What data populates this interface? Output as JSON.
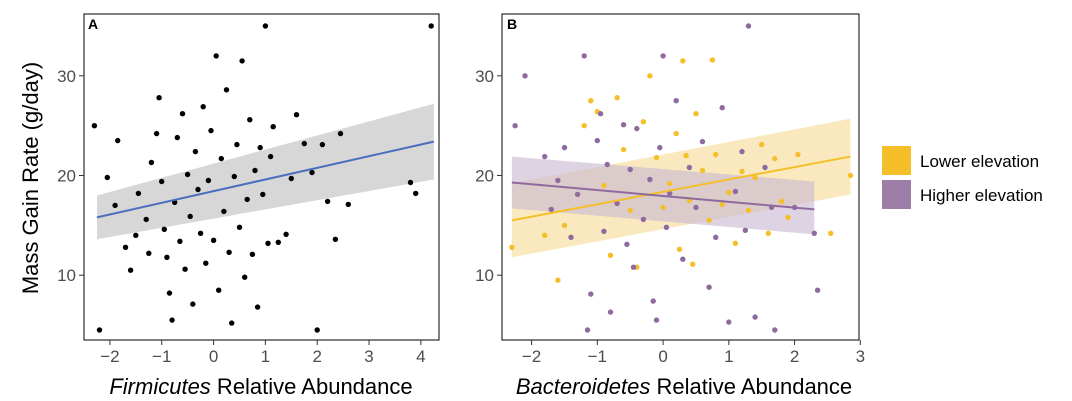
{
  "figure": {
    "ylabel": "Mass Gain Rate (g/day)"
  },
  "chart_data": [
    {
      "type": "scatter",
      "panel": "A",
      "xlabel_italic": "Firmicutes",
      "xlabel_rest": " Relative Abundance",
      "ylabel": "Mass Gain Rate (g/day)",
      "xlim": [
        -2.5,
        4.35
      ],
      "ylim": [
        3.5,
        36.2
      ],
      "xticks": [
        -2,
        -1,
        0,
        1,
        2,
        3,
        4
      ],
      "yticks": [
        10,
        20,
        30
      ],
      "grid": false,
      "point_color": "#000000",
      "line_color": "#4a6ebe",
      "ribbon_color": "#bfbfbf",
      "series": [
        {
          "points": [
            [
              -2.2,
              4.5
            ],
            [
              -2.3,
              25
            ],
            [
              -2.05,
              19.8
            ],
            [
              -1.9,
              17
            ],
            [
              -1.85,
              23.5
            ],
            [
              -1.7,
              12.8
            ],
            [
              -1.6,
              10.5
            ],
            [
              -1.5,
              14
            ],
            [
              -1.45,
              18.2
            ],
            [
              -1.3,
              15.6
            ],
            [
              -1.25,
              12.2
            ],
            [
              -1.2,
              21.3
            ],
            [
              -1.1,
              24.2
            ],
            [
              -1.05,
              27.8
            ],
            [
              -1.0,
              19.4
            ],
            [
              -0.95,
              14.6
            ],
            [
              -0.9,
              11.8
            ],
            [
              -0.85,
              8.2
            ],
            [
              -0.8,
              5.5
            ],
            [
              -0.75,
              17.3
            ],
            [
              -0.7,
              23.8
            ],
            [
              -0.65,
              13.4
            ],
            [
              -0.6,
              26.2
            ],
            [
              -0.55,
              10.6
            ],
            [
              -0.5,
              20.1
            ],
            [
              -0.45,
              15.9
            ],
            [
              -0.4,
              7.1
            ],
            [
              -0.35,
              22.4
            ],
            [
              -0.3,
              18.6
            ],
            [
              -0.25,
              14.2
            ],
            [
              -0.2,
              26.9
            ],
            [
              -0.15,
              11.2
            ],
            [
              -0.1,
              19.5
            ],
            [
              -0.05,
              24.5
            ],
            [
              0.0,
              13.5
            ],
            [
              0.05,
              32
            ],
            [
              0.1,
              8.5
            ],
            [
              0.15,
              21.7
            ],
            [
              0.2,
              16.4
            ],
            [
              0.25,
              28.6
            ],
            [
              0.3,
              12.3
            ],
            [
              0.35,
              5.2
            ],
            [
              0.4,
              19.9
            ],
            [
              0.45,
              23.1
            ],
            [
              0.5,
              14.8
            ],
            [
              0.55,
              31.5
            ],
            [
              0.6,
              9.8
            ],
            [
              0.65,
              17.6
            ],
            [
              0.7,
              25.6
            ],
            [
              0.75,
              12.1
            ],
            [
              0.8,
              20.5
            ],
            [
              0.85,
              6.8
            ],
            [
              0.9,
              22.8
            ],
            [
              0.95,
              18.1
            ],
            [
              1.0,
              35
            ],
            [
              1.05,
              13.2
            ],
            [
              1.1,
              21.9
            ],
            [
              1.15,
              24.9
            ],
            [
              1.25,
              13.3
            ],
            [
              1.4,
              14.1
            ],
            [
              1.5,
              19.7
            ],
            [
              1.6,
              26.1
            ],
            [
              1.75,
              23.2
            ],
            [
              1.9,
              20.3
            ],
            [
              2.0,
              4.5
            ],
            [
              2.1,
              23.1
            ],
            [
              2.2,
              17.4
            ],
            [
              2.35,
              13.6
            ],
            [
              2.45,
              24.2
            ],
            [
              2.6,
              17.1
            ],
            [
              3.8,
              19.3
            ],
            [
              3.9,
              18.2
            ],
            [
              4.2,
              35
            ]
          ],
          "fit_x": [
            -2.25,
            4.25
          ],
          "fit_y": [
            15.8,
            23.4
          ],
          "ci_lower": [
            13.6,
            19.6
          ],
          "ci_upper": [
            18.0,
            27.2
          ]
        }
      ]
    },
    {
      "type": "scatter",
      "panel": "B",
      "xlabel_italic": "Bacteroidetes",
      "xlabel_rest": " Relative Abundance",
      "ylabel": "",
      "xlim": [
        -2.45,
        2.98
      ],
      "ylim": [
        3.5,
        36.2
      ],
      "xticks": [
        -2,
        -1,
        0,
        1,
        2,
        3
      ],
      "yticks": [
        10,
        20,
        30
      ],
      "grid": false,
      "series": [
        {
          "name": "Lower elevation",
          "color": "#f5bf2a",
          "ribbon_color": "#f7dc96",
          "points": [
            [
              -2.3,
              12.8
            ],
            [
              -1.8,
              14
            ],
            [
              -1.6,
              9.5
            ],
            [
              -1.5,
              15
            ],
            [
              -1.2,
              25
            ],
            [
              -1.1,
              27.5
            ],
            [
              -1.0,
              26.4
            ],
            [
              -0.9,
              19
            ],
            [
              -0.8,
              12
            ],
            [
              -0.7,
              27.8
            ],
            [
              -0.6,
              22.6
            ],
            [
              -0.5,
              16.5
            ],
            [
              -0.4,
              10.8
            ],
            [
              -0.3,
              25.4
            ],
            [
              -0.2,
              30
            ],
            [
              -0.1,
              21.8
            ],
            [
              0.0,
              16.8
            ],
            [
              0.1,
              19.2
            ],
            [
              0.2,
              24.2
            ],
            [
              0.25,
              12.6
            ],
            [
              0.3,
              31.5
            ],
            [
              0.35,
              22
            ],
            [
              0.4,
              17.5
            ],
            [
              0.45,
              11.1
            ],
            [
              0.5,
              26.2
            ],
            [
              0.6,
              20.5
            ],
            [
              0.7,
              15.5
            ],
            [
              0.75,
              31.6
            ],
            [
              0.8,
              22.1
            ],
            [
              0.9,
              17.1
            ],
            [
              1.0,
              18.3
            ],
            [
              1.1,
              13.2
            ],
            [
              1.2,
              20.4
            ],
            [
              1.3,
              16.5
            ],
            [
              1.4,
              19.8
            ],
            [
              1.5,
              23.1
            ],
            [
              1.6,
              14.2
            ],
            [
              1.7,
              21.7
            ],
            [
              1.8,
              17.4
            ],
            [
              1.9,
              15.8
            ],
            [
              2.05,
              22.1
            ],
            [
              2.55,
              14.2
            ],
            [
              2.85,
              20
            ]
          ],
          "fit_x": [
            -2.3,
            2.85
          ],
          "fit_y": [
            15.5,
            21.9
          ],
          "ci_lower": [
            11.8,
            18.1
          ],
          "ci_upper": [
            19.2,
            25.7
          ]
        },
        {
          "name": "Higher elevation",
          "color": "#8f6a9f",
          "ribbon_color": "#c8b8d2",
          "points": [
            [
              -2.25,
              25
            ],
            [
              -2.1,
              30
            ],
            [
              -1.8,
              21.9
            ],
            [
              -1.7,
              16.6
            ],
            [
              -1.6,
              19.5
            ],
            [
              -1.5,
              22.8
            ],
            [
              -1.4,
              13.8
            ],
            [
              -1.3,
              18.1
            ],
            [
              -1.2,
              32
            ],
            [
              -1.15,
              4.5
            ],
            [
              -1.1,
              8.1
            ],
            [
              -1.0,
              23.5
            ],
            [
              -0.95,
              26.2
            ],
            [
              -0.9,
              14.4
            ],
            [
              -0.85,
              21.1
            ],
            [
              -0.8,
              6.3
            ],
            [
              -0.7,
              17.2
            ],
            [
              -0.6,
              25.1
            ],
            [
              -0.55,
              13.1
            ],
            [
              -0.5,
              20.6
            ],
            [
              -0.45,
              10.8
            ],
            [
              -0.4,
              24.7
            ],
            [
              -0.3,
              15.6
            ],
            [
              -0.2,
              19.6
            ],
            [
              -0.15,
              7.4
            ],
            [
              -0.1,
              5.5
            ],
            [
              -0.05,
              22.8
            ],
            [
              0.0,
              32
            ],
            [
              0.05,
              14.8
            ],
            [
              0.1,
              18.2
            ],
            [
              0.2,
              27.5
            ],
            [
              0.3,
              11.6
            ],
            [
              0.4,
              20.8
            ],
            [
              0.5,
              16.8
            ],
            [
              0.6,
              23.4
            ],
            [
              0.7,
              8.8
            ],
            [
              0.8,
              13.8
            ],
            [
              0.9,
              26.8
            ],
            [
              1.0,
              5.3
            ],
            [
              1.1,
              18.4
            ],
            [
              1.2,
              22.4
            ],
            [
              1.25,
              14.5
            ],
            [
              1.3,
              35
            ],
            [
              1.4,
              5.8
            ],
            [
              1.55,
              20.8
            ],
            [
              1.65,
              16.8
            ],
            [
              1.7,
              4.5
            ],
            [
              2.0,
              16.8
            ],
            [
              2.3,
              14.2
            ],
            [
              2.35,
              8.5
            ]
          ],
          "fit_x": [
            -2.3,
            2.3
          ],
          "fit_y": [
            19.3,
            16.6
          ],
          "ci_lower": [
            16.7,
            14.1
          ],
          "ci_upper": [
            21.9,
            19.4
          ]
        }
      ]
    }
  ],
  "legend": {
    "placement": "right",
    "items": [
      {
        "label": "Lower elevation",
        "color": "#f5bf2a"
      },
      {
        "label": "Higher elevation",
        "color": "#9d7ea8"
      }
    ]
  }
}
